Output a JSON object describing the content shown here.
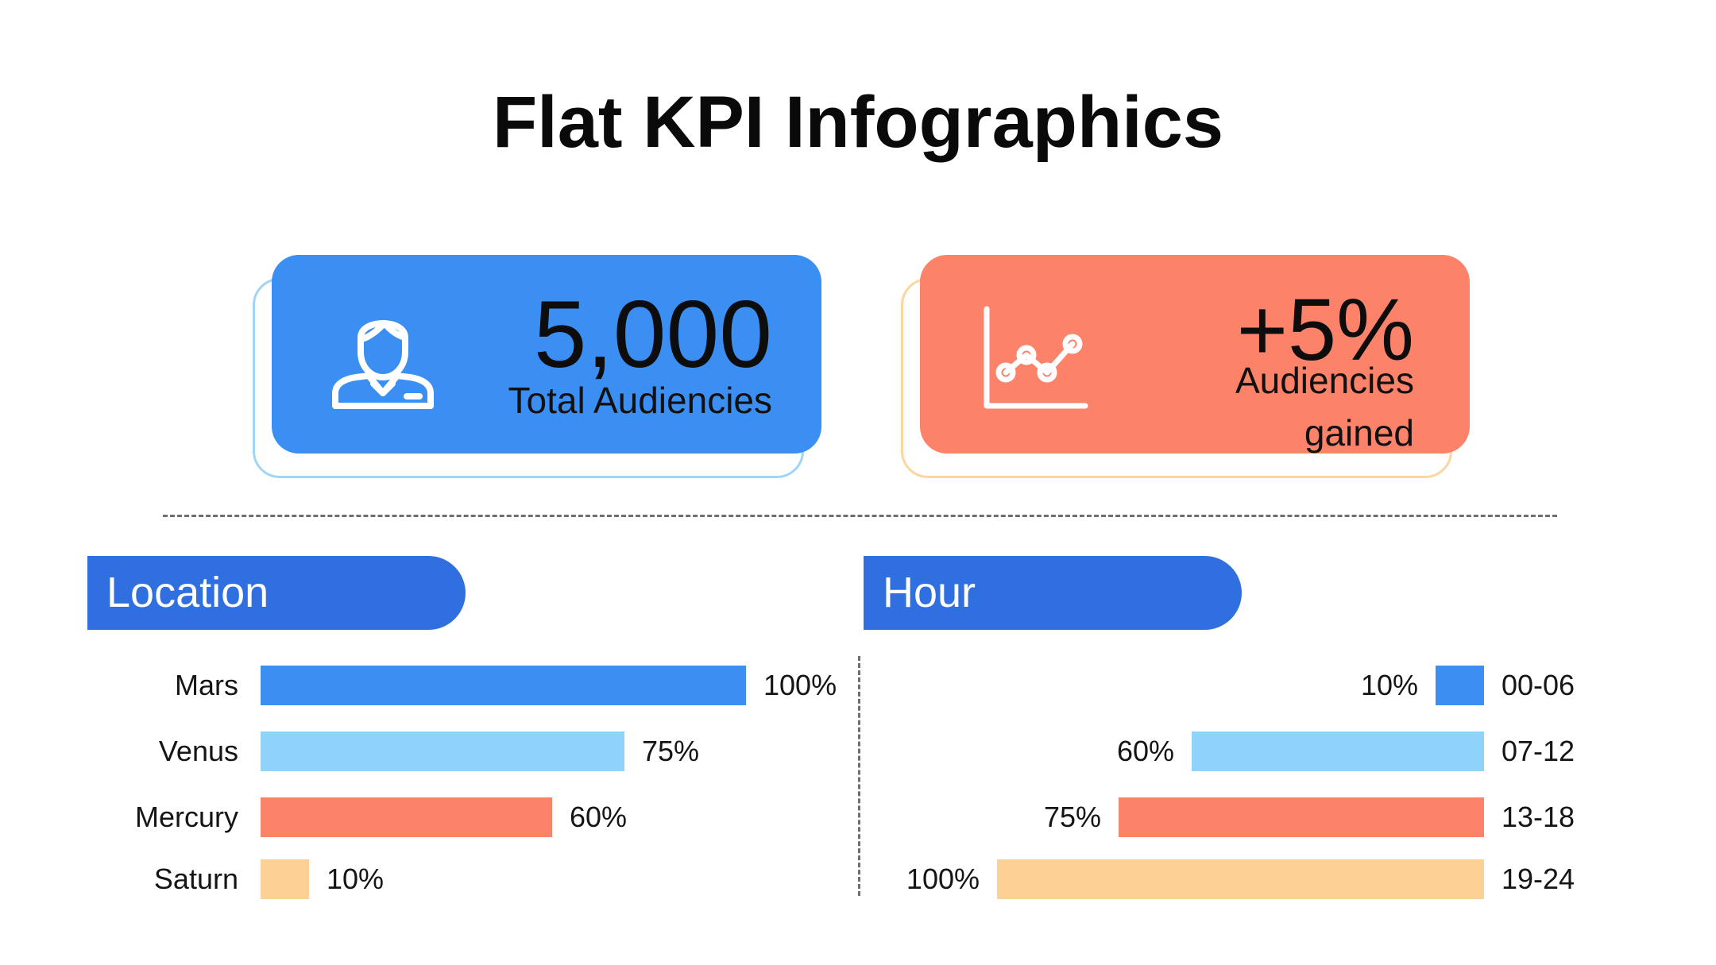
{
  "title": "Flat KPI Infographics",
  "kpis": [
    {
      "value": "5,000",
      "label": "Total Audiencies",
      "icon": "user-icon",
      "color": "#3b8ff3",
      "outline": "#9fd6f6"
    },
    {
      "value": "+5%",
      "label_line1": "Audiencies",
      "label_line2": "gained",
      "icon": "line-chart-icon",
      "color": "#fc826a",
      "outline": "#fbd6a0"
    }
  ],
  "chart_data": [
    {
      "type": "bar",
      "orientation": "horizontal",
      "title": "Location",
      "categories": [
        "Mars",
        "Venus",
        "Mercury",
        "Saturn"
      ],
      "values": [
        100,
        75,
        60,
        10
      ],
      "value_labels": [
        "100%",
        "75%",
        "60%",
        "10%"
      ],
      "colors": [
        "#3b8ff3",
        "#8fd3fb",
        "#fc826a",
        "#fdd196"
      ],
      "xlim": [
        0,
        100
      ],
      "direction": "left-to-right",
      "grid": false
    },
    {
      "type": "bar",
      "orientation": "horizontal",
      "title": "Hour",
      "categories": [
        "00-06",
        "07-12",
        "13-18",
        "19-24"
      ],
      "values": [
        10,
        60,
        75,
        100
      ],
      "value_labels": [
        "10%",
        "60%",
        "75%",
        "100%"
      ],
      "colors": [
        "#3b8ff3",
        "#8fd3fb",
        "#fc826a",
        "#fdd196"
      ],
      "xlim": [
        0,
        100
      ],
      "direction": "right-to-left",
      "grid": false
    }
  ]
}
